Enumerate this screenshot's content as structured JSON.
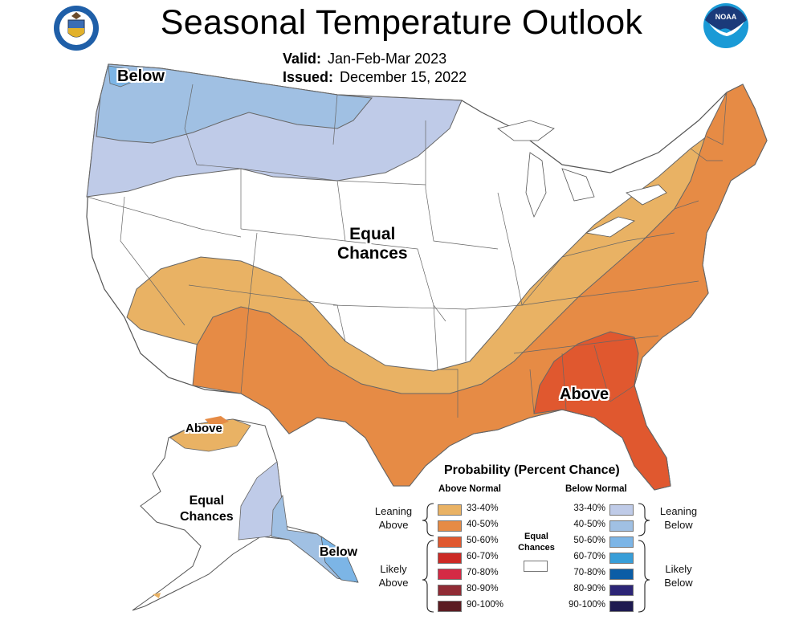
{
  "header": {
    "title": "Seasonal Temperature Outlook",
    "valid_label": "Valid:",
    "valid_value": "Jan-Feb-Mar 2023",
    "issued_label": "Issued:",
    "issued_value": "December 15, 2022",
    "left_logo": "department-of-commerce-seal",
    "right_logo": "noaa-logo",
    "noaa_text": "NOAA"
  },
  "map_labels": {
    "conus_below": "Below",
    "conus_equal": [
      "Equal",
      "Chances"
    ],
    "conus_above": "Above",
    "alaska_above": "Above",
    "alaska_equal": [
      "Equal",
      "Chances"
    ],
    "alaska_below": "Below"
  },
  "colors": {
    "above_33_40": "#E9B264",
    "above_40_50": "#E68B45",
    "above_50_60": "#E0582F",
    "above_60_70": "#CC2A25",
    "above_70_80": "#D42A45",
    "above_80_90": "#902B35",
    "above_90_100": "#5C1C22",
    "below_33_40": "#BFCBE8",
    "below_40_50": "#A0C0E3",
    "below_50_60": "#7CB5E6",
    "below_60_70": "#389ED8",
    "below_70_80": "#0B5DA6",
    "below_80_90": "#2C2576",
    "below_90_100": "#1E1A50",
    "equal": "#FFFFFF"
  },
  "legend": {
    "title": "Probability (Percent Chance)",
    "above_header": "Above Normal",
    "below_header": "Below Normal",
    "above": [
      {
        "range": "33-40%",
        "color": "#E9B264"
      },
      {
        "range": "40-50%",
        "color": "#E68B45"
      },
      {
        "range": "50-60%",
        "color": "#E0582F"
      },
      {
        "range": "60-70%",
        "color": "#CC2A25"
      },
      {
        "range": "70-80%",
        "color": "#D42A45"
      },
      {
        "range": "80-90%",
        "color": "#902B35"
      },
      {
        "range": "90-100%",
        "color": "#5C1C22"
      }
    ],
    "below": [
      {
        "range": "33-40%",
        "color": "#BFCBE8"
      },
      {
        "range": "40-50%",
        "color": "#A0C0E3"
      },
      {
        "range": "50-60%",
        "color": "#7CB5E6"
      },
      {
        "range": "60-70%",
        "color": "#389ED8"
      },
      {
        "range": "70-80%",
        "color": "#0B5DA6"
      },
      {
        "range": "80-90%",
        "color": "#2C2576"
      },
      {
        "range": "90-100%",
        "color": "#1E1A50"
      }
    ],
    "equal_label": [
      "Equal",
      "Chances"
    ],
    "leaning_above": [
      "Leaning",
      "Above"
    ],
    "likely_above": [
      "Likely",
      "Above"
    ],
    "leaning_below": [
      "Leaning",
      "Below"
    ],
    "likely_below": [
      "Likely",
      "Below"
    ]
  }
}
